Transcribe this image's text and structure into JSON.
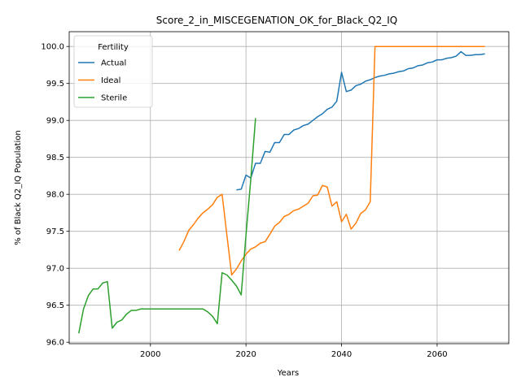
{
  "chart_data": {
    "type": "line",
    "title": "Score_2_in_MISCEGENATION_OK_for_Black_Q2_IQ",
    "xlabel": "Years",
    "ylabel": "% of Black Q2_IQ Population",
    "xlim": [
      1983,
      2075
    ],
    "ylim": [
      95.98,
      100.2
    ],
    "xticks": [
      2000,
      2020,
      2040,
      2060
    ],
    "yticks": [
      96.0,
      96.5,
      97.0,
      97.5,
      98.0,
      98.5,
      99.0,
      99.5,
      100.0
    ],
    "ytick_labels": [
      "96.0",
      "96.5",
      "97.0",
      "97.5",
      "98.0",
      "98.5",
      "99.0",
      "99.5",
      "100.0"
    ],
    "grid": true,
    "legend": {
      "title": "Fertility",
      "placement": "top-left"
    },
    "series": [
      {
        "name": "Actual",
        "color": "#1f77b4",
        "x": [
          2018,
          2019,
          2020,
          2021,
          2022,
          2023,
          2024,
          2025,
          2026,
          2027,
          2028,
          2029,
          2030,
          2031,
          2032,
          2033,
          2034,
          2035,
          2036,
          2037,
          2038,
          2039,
          2040,
          2041,
          2042,
          2043,
          2044,
          2045,
          2046,
          2047,
          2048,
          2049,
          2050,
          2051,
          2052,
          2053,
          2054,
          2055,
          2056,
          2057,
          2058,
          2059,
          2060,
          2061,
          2062,
          2063,
          2064,
          2065,
          2066,
          2067,
          2068,
          2069,
          2070
        ],
        "y": [
          98.06,
          98.07,
          98.26,
          98.22,
          98.42,
          98.42,
          98.58,
          98.57,
          98.7,
          98.7,
          98.81,
          98.81,
          98.87,
          98.89,
          98.93,
          98.95,
          99.0,
          99.05,
          99.09,
          99.15,
          99.18,
          99.26,
          99.65,
          99.39,
          99.41,
          99.47,
          99.49,
          99.53,
          99.55,
          99.58,
          99.6,
          99.61,
          99.63,
          99.64,
          99.66,
          99.67,
          99.7,
          99.71,
          99.74,
          99.75,
          99.78,
          99.79,
          99.82,
          99.82,
          99.84,
          99.85,
          99.87,
          99.93,
          99.88,
          99.88,
          99.89,
          99.89,
          99.9
        ]
      },
      {
        "name": "Ideal",
        "color": "#ff7f0e",
        "x": [
          2006,
          2007,
          2008,
          2009,
          2010,
          2011,
          2012,
          2013,
          2014,
          2015,
          2016,
          2017,
          2018,
          2019,
          2020,
          2021,
          2022,
          2023,
          2024,
          2025,
          2026,
          2027,
          2028,
          2029,
          2030,
          2031,
          2032,
          2033,
          2034,
          2035,
          2036,
          2037,
          2038,
          2039,
          2040,
          2041,
          2042,
          2043,
          2044,
          2045,
          2046,
          2047,
          2050,
          2055,
          2060,
          2065,
          2070
        ],
        "y": [
          97.24,
          97.36,
          97.51,
          97.59,
          97.68,
          97.75,
          97.8,
          97.86,
          97.96,
          98.0,
          97.45,
          96.91,
          96.99,
          97.1,
          97.19,
          97.26,
          97.29,
          97.34,
          97.36,
          97.46,
          97.57,
          97.62,
          97.7,
          97.73,
          97.78,
          97.8,
          97.84,
          97.88,
          97.98,
          97.99,
          98.12,
          98.1,
          97.84,
          97.9,
          97.63,
          97.73,
          97.53,
          97.61,
          97.74,
          97.79,
          97.9,
          100.0,
          100.0,
          100.0,
          100.0,
          100.0,
          100.0
        ]
      },
      {
        "name": "Sterile",
        "color": "#2ca02c",
        "x": [
          1985,
          1986,
          1987,
          1988,
          1989,
          1990,
          1991,
          1992,
          1993,
          1994,
          1995,
          1996,
          1997,
          1998,
          1999,
          2000,
          2005,
          2010,
          2011,
          2012,
          2013,
          2014,
          2015,
          2016,
          2017,
          2018,
          2019,
          2020,
          2021,
          2022
        ],
        "y": [
          96.12,
          96.45,
          96.63,
          96.72,
          96.72,
          96.8,
          96.82,
          96.19,
          96.27,
          96.3,
          96.38,
          96.43,
          96.43,
          96.45,
          96.45,
          96.45,
          96.45,
          96.45,
          96.45,
          96.41,
          96.35,
          96.25,
          96.94,
          96.91,
          96.84,
          96.76,
          96.64,
          97.45,
          98.2,
          99.03
        ]
      }
    ]
  }
}
